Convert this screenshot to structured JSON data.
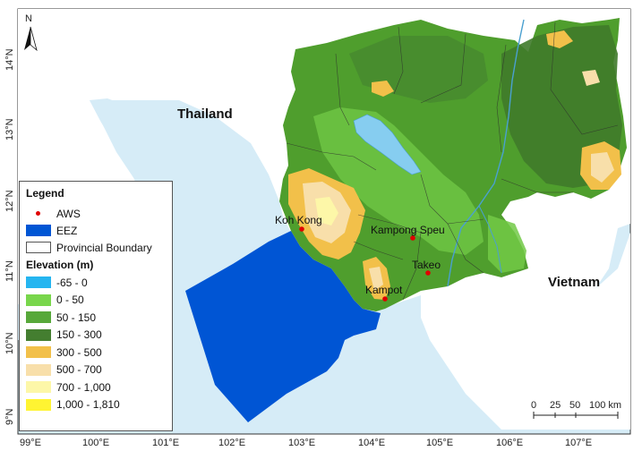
{
  "map": {
    "longitude_ticks": [
      "99°E",
      "100°E",
      "101°E",
      "102°E",
      "103°E",
      "104°E",
      "105°E",
      "106°E",
      "107°E"
    ],
    "latitude_ticks": [
      "9°N",
      "10°N",
      "11°N",
      "12°N",
      "13°N",
      "14°N"
    ],
    "north_arrow_label": "N",
    "countries": {
      "thailand": "Thailand",
      "vietnam": "Vietnam"
    },
    "stations": [
      "Koh Kong",
      "Kampong Speu",
      "Takeo",
      "Kampot"
    ],
    "scale_bar": {
      "labels": [
        "0",
        "25",
        "50",
        "100 km"
      ]
    }
  },
  "legend": {
    "title": "Legend",
    "items": [
      {
        "label": "AWS",
        "symbol": "red-dot"
      },
      {
        "label": "EEZ",
        "color": "#0055d4"
      },
      {
        "label": "Provincial Boundary",
        "color": "#ffffff"
      }
    ],
    "elevation_title": "Elevation (m)",
    "elevation_classes": [
      {
        "label": "-65 - 0",
        "color": "#25b5f0"
      },
      {
        "label": "0 - 50",
        "color": "#78d64b"
      },
      {
        "label": "50 - 150",
        "color": "#57a83a"
      },
      {
        "label": "150 - 300",
        "color": "#447e30"
      },
      {
        "label": "300 - 500",
        "color": "#f2c04a"
      },
      {
        "label": "500 - 700",
        "color": "#f8dfaa"
      },
      {
        "label": "700 - 1,000",
        "color": "#fdf7a8"
      },
      {
        "label": "1,000 - 1,810",
        "color": "#fff432"
      }
    ]
  },
  "colors": {
    "sea": "#d6ecf7",
    "land_neighbor": "#ffffff",
    "eez": "#0055d4",
    "lake": "#86cdf0",
    "station": "#e00000"
  }
}
